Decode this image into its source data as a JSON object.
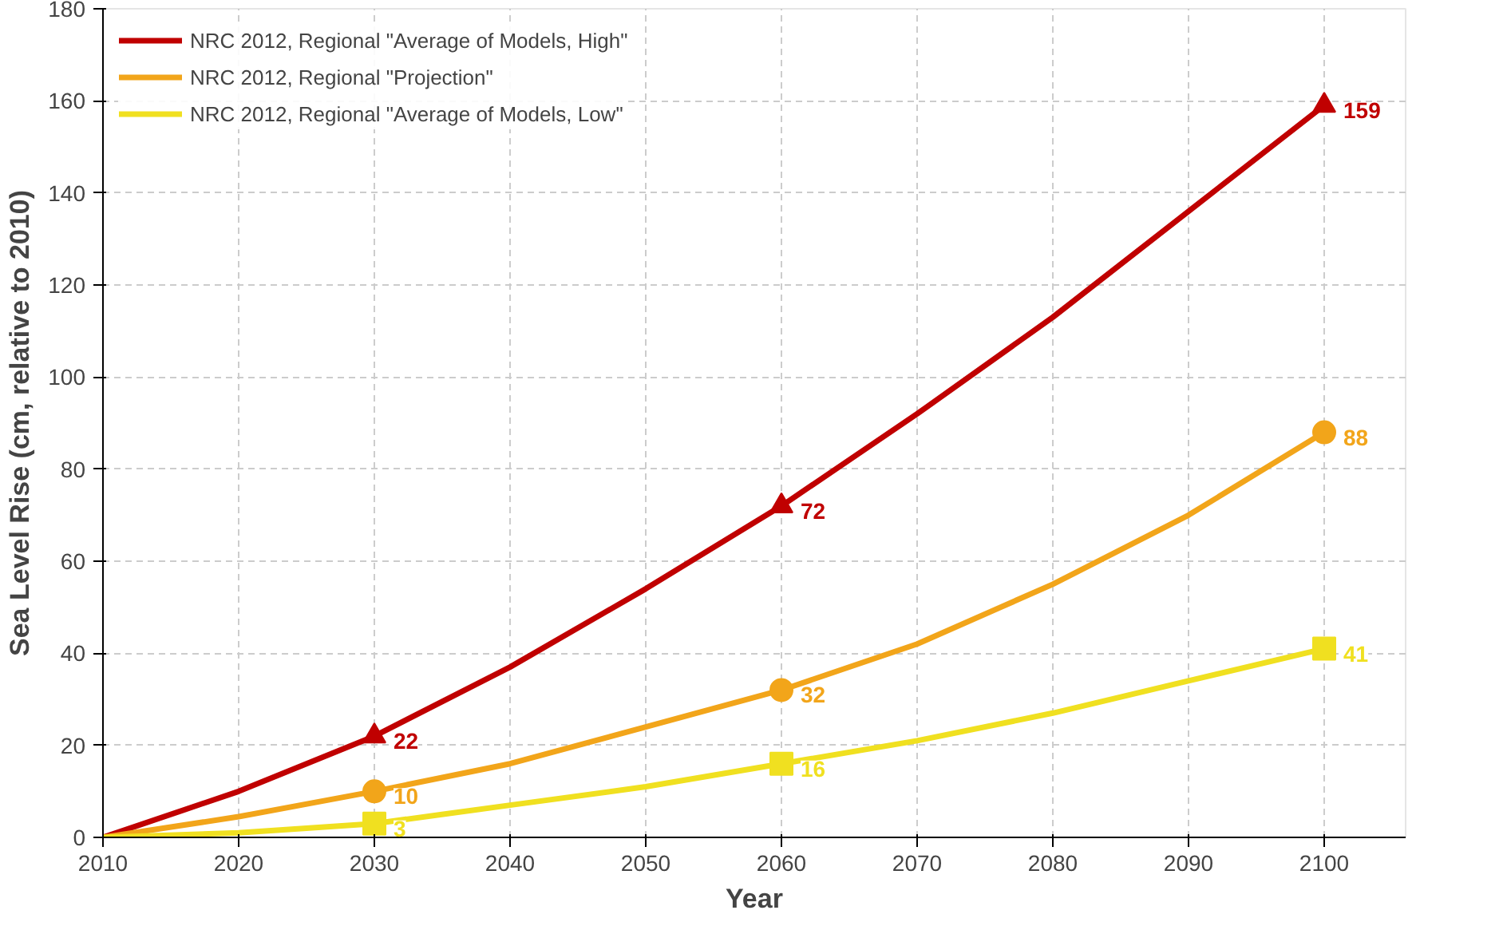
{
  "chart_data": {
    "type": "line",
    "xlabel": "Year",
    "ylabel": "Sea Level Rise (cm, relative to 2010)",
    "xlim": [
      2010,
      2106
    ],
    "xticks": [
      2010,
      2020,
      2030,
      2040,
      2050,
      2060,
      2070,
      2080,
      2090,
      2100
    ],
    "ylim": [
      0,
      180
    ],
    "yticks": [
      0,
      20,
      40,
      60,
      80,
      100,
      120,
      140,
      160,
      180
    ],
    "grid": true,
    "legend": "top left",
    "line_style": "solid",
    "series": [
      {
        "name": "NRC 2012, Regional \"Average of Models, High\"",
        "color": "#c00000",
        "x": [
          2010,
          2020,
          2030,
          2040,
          2050,
          2060,
          2070,
          2080,
          2090,
          2100
        ],
        "values": [
          0,
          10,
          22,
          37,
          54,
          72,
          92,
          113,
          136,
          159
        ]
      },
      {
        "name": "NRC 2012, Regional \"Projection\"",
        "color": "#f2a51a",
        "x": [
          2010,
          2020,
          2030,
          2040,
          2050,
          2060,
          2070,
          2080,
          2090,
          2100
        ],
        "values": [
          0,
          4.5,
          10,
          16,
          24,
          32,
          42,
          55,
          70,
          88
        ]
      },
      {
        "name": "NRC 2012, Regional \"Average of Models, Low\"",
        "color": "#f0e020",
        "x": [
          2010,
          2020,
          2030,
          2040,
          2050,
          2060,
          2070,
          2080,
          2090,
          2100
        ],
        "values": [
          0,
          1,
          3,
          7,
          11,
          16,
          21,
          27,
          34,
          41
        ]
      },
      {
        "color": "#c00000",
        "type": "scatter",
        "marker": "triangle",
        "x": [
          2030,
          2060,
          2100
        ],
        "values": [
          22,
          72,
          159
        ],
        "value_labels": [
          "22",
          "72",
          "159"
        ]
      },
      {
        "color": "#f2a51a",
        "type": "scatter",
        "marker": "circle",
        "x": [
          2030,
          2060,
          2100
        ],
        "values": [
          10,
          32,
          88
        ],
        "value_labels": [
          "10",
          "32",
          "88"
        ]
      },
      {
        "color": "#f0e020",
        "type": "scatter",
        "marker": "square",
        "x": [
          2030,
          2060,
          2100
        ],
        "values": [
          3,
          16,
          41
        ],
        "value_labels": [
          "3",
          "16",
          "41"
        ]
      }
    ]
  }
}
